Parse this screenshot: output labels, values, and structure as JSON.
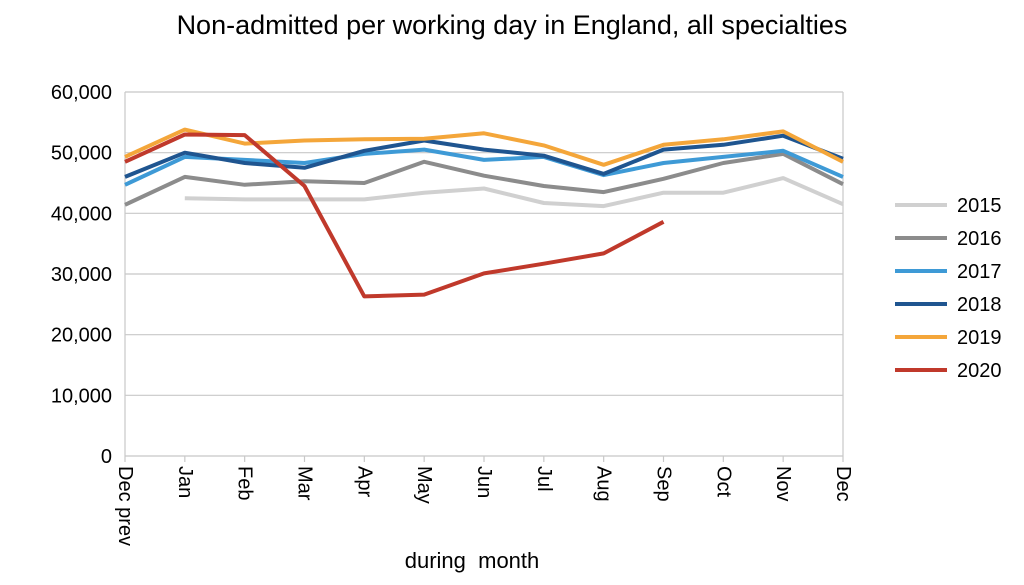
{
  "chart_data": {
    "type": "line",
    "title": "Non-admitted per working day in England, all specialties",
    "xlabel": "during  month",
    "ylabel": "",
    "categories": [
      "Dec prev",
      "Jan",
      "Feb",
      "Mar",
      "Apr",
      "May",
      "Jun",
      "Jul",
      "Aug",
      "Sep",
      "Oct",
      "Nov",
      "Dec"
    ],
    "ylim": [
      0,
      60000
    ],
    "yticks": [
      0,
      10000,
      20000,
      30000,
      40000,
      50000,
      60000
    ],
    "ytick_labels": [
      "0",
      "10,000",
      "20,000",
      "30,000",
      "40,000",
      "50,000",
      "60,000"
    ],
    "grid": true,
    "legend_position": "right",
    "series": [
      {
        "name": "2015",
        "color": "#d0d0d0",
        "values": [
          null,
          42500,
          42300,
          42300,
          42300,
          43400,
          44100,
          41700,
          41200,
          43400,
          43400,
          45800,
          41500
        ]
      },
      {
        "name": "2016",
        "color": "#8c8c8c",
        "values": [
          41400,
          46000,
          44700,
          45300,
          45000,
          48500,
          46200,
          44500,
          43500,
          45700,
          48300,
          49800,
          44800
        ]
      },
      {
        "name": "2017",
        "color": "#3e9ad6",
        "values": [
          44700,
          49300,
          48800,
          48300,
          49800,
          50500,
          48800,
          49300,
          46300,
          48300,
          49300,
          50300,
          46000
        ]
      },
      {
        "name": "2018",
        "color": "#1f5590",
        "values": [
          46000,
          50000,
          48300,
          47500,
          50300,
          52000,
          50500,
          49500,
          46500,
          50500,
          51300,
          52800,
          49000
        ]
      },
      {
        "name": "2019",
        "color": "#f4a63a",
        "values": [
          49300,
          53800,
          51500,
          52000,
          52200,
          52300,
          53200,
          51200,
          48000,
          51300,
          52200,
          53500,
          48500
        ]
      },
      {
        "name": "2020",
        "color": "#c0392b",
        "values": [
          48500,
          53000,
          52900,
          44500,
          26300,
          26600,
          30100,
          31700,
          33400,
          38600,
          null,
          null,
          null
        ]
      }
    ]
  }
}
